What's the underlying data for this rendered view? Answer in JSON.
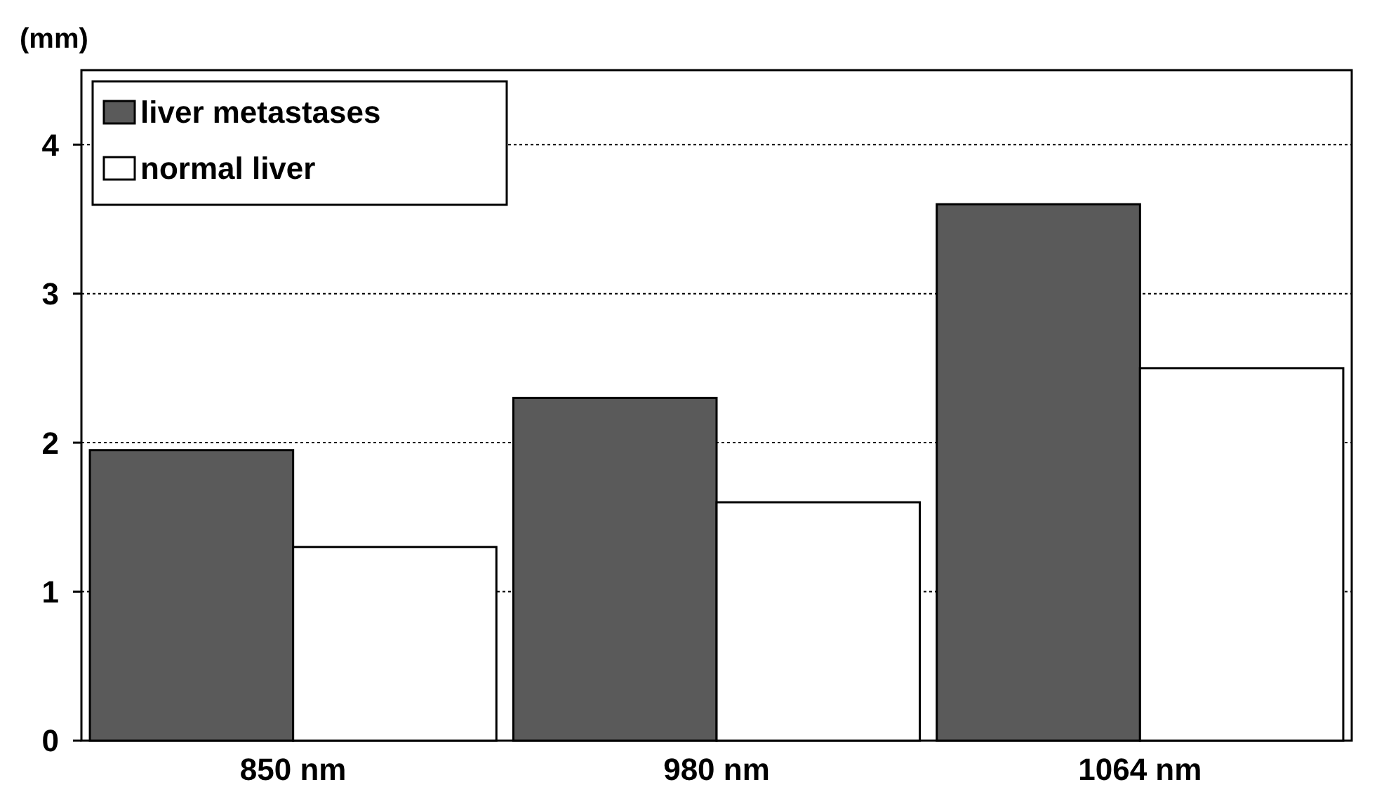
{
  "chart_data": {
    "type": "bar",
    "ylabel": "(mm)",
    "categories": [
      "850 nm",
      "980 nm",
      "1064 nm"
    ],
    "series": [
      {
        "name": "liver metastases",
        "color": "#5a5a5a",
        "values": [
          1.95,
          2.3,
          3.6
        ]
      },
      {
        "name": "normal liver",
        "color": "#ffffff",
        "values": [
          1.3,
          1.6,
          2.5
        ]
      }
    ],
    "ylim": [
      0,
      4.5
    ],
    "yticks": [
      0,
      1,
      2,
      3,
      4
    ],
    "grid": "y",
    "legend": "top left"
  }
}
